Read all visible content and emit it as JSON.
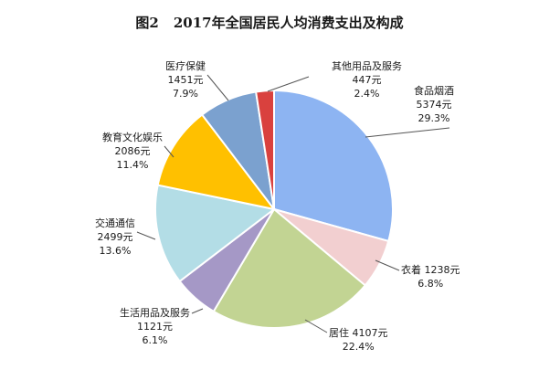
{
  "chart_data": {
    "type": "pie",
    "title_number": "图2",
    "title": "2017年全国居民人均消费支出及构成",
    "slices": [
      {
        "name": "食品烟酒",
        "value": 5374,
        "value_label": "5374元",
        "percent": 29.3,
        "percent_label": "29.3%",
        "color": "#8DB4F2"
      },
      {
        "name": "衣着",
        "value": 1238,
        "value_label": "1238元",
        "percent": 6.8,
        "percent_label": "6.8%",
        "color": "#F2CFD0"
      },
      {
        "name": "居住",
        "value": 4107,
        "value_label": "4107元",
        "percent": 22.4,
        "percent_label": "22.4%",
        "color": "#C2D493"
      },
      {
        "name": "生活用品及服务",
        "value": 1121,
        "value_label": "1121元",
        "percent": 6.1,
        "percent_label": "6.1%",
        "color": "#A598C6"
      },
      {
        "name": "交通通信",
        "value": 2499,
        "value_label": "2499元",
        "percent": 13.6,
        "percent_label": "13.6%",
        "color": "#B3DDE6"
      },
      {
        "name": "教育文化娱乐",
        "value": 2086,
        "value_label": "2086元",
        "percent": 11.4,
        "percent_label": "11.4%",
        "color": "#FFC000"
      },
      {
        "name": "医疗保健",
        "value": 1451,
        "value_label": "1451元",
        "percent": 7.9,
        "percent_label": "7.9%",
        "color": "#7BA1CF"
      },
      {
        "name": "其他用品及服务",
        "value": 447,
        "value_label": "447元",
        "percent": 2.4,
        "percent_label": "2.4%",
        "color": "#D9413E"
      }
    ]
  }
}
